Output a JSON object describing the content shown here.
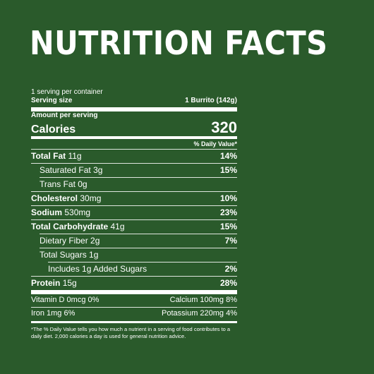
{
  "title": "NUTRITION FACTS",
  "servings_per_container": "1 serving per container",
  "serving_size_label": "Serving size",
  "serving_size_value": "1 Burrito (142g)",
  "amount_per_serving": "Amount per serving",
  "calories_label": "Calories",
  "calories_value": "320",
  "daily_value_header": "% Daily Value*",
  "nutrients": [
    {
      "name": "Total Fat",
      "amount": "11g",
      "dv": "14%"
    },
    {
      "name": "Saturated Fat",
      "amount": "3g",
      "dv": "15%"
    },
    {
      "name": "Trans Fat",
      "amount": "0g",
      "dv": ""
    },
    {
      "name": "Cholesterol",
      "amount": "30mg",
      "dv": "10%"
    },
    {
      "name": "Sodium",
      "amount": "530mg",
      "dv": "23%"
    },
    {
      "name": "Total Carbohydrate",
      "amount": "41g",
      "dv": "15%"
    },
    {
      "name": "Dietary Fiber",
      "amount": "2g",
      "dv": "7%"
    },
    {
      "name": "Total Sugars",
      "amount": "1g",
      "dv": ""
    },
    {
      "name": "Includes 1g Added Sugars",
      "amount": "",
      "dv": "2%"
    },
    {
      "name": "Protein",
      "amount": "15g",
      "dv": "28%"
    }
  ],
  "vitamins": [
    {
      "left": "Vitamin D 0mcg 0%",
      "right": "Calcium 100mg 8%"
    },
    {
      "left": "Iron 1mg 6%",
      "right": "Potassium 220mg 4%"
    }
  ],
  "footnote": "*The % Daily Value tells you how much a nutrient in a serving of food contributes to a daily diet. 2,000 calories a day is used for general nutrition advice.",
  "colors": {
    "background": "#2a5a2b",
    "text": "#ffffff"
  }
}
